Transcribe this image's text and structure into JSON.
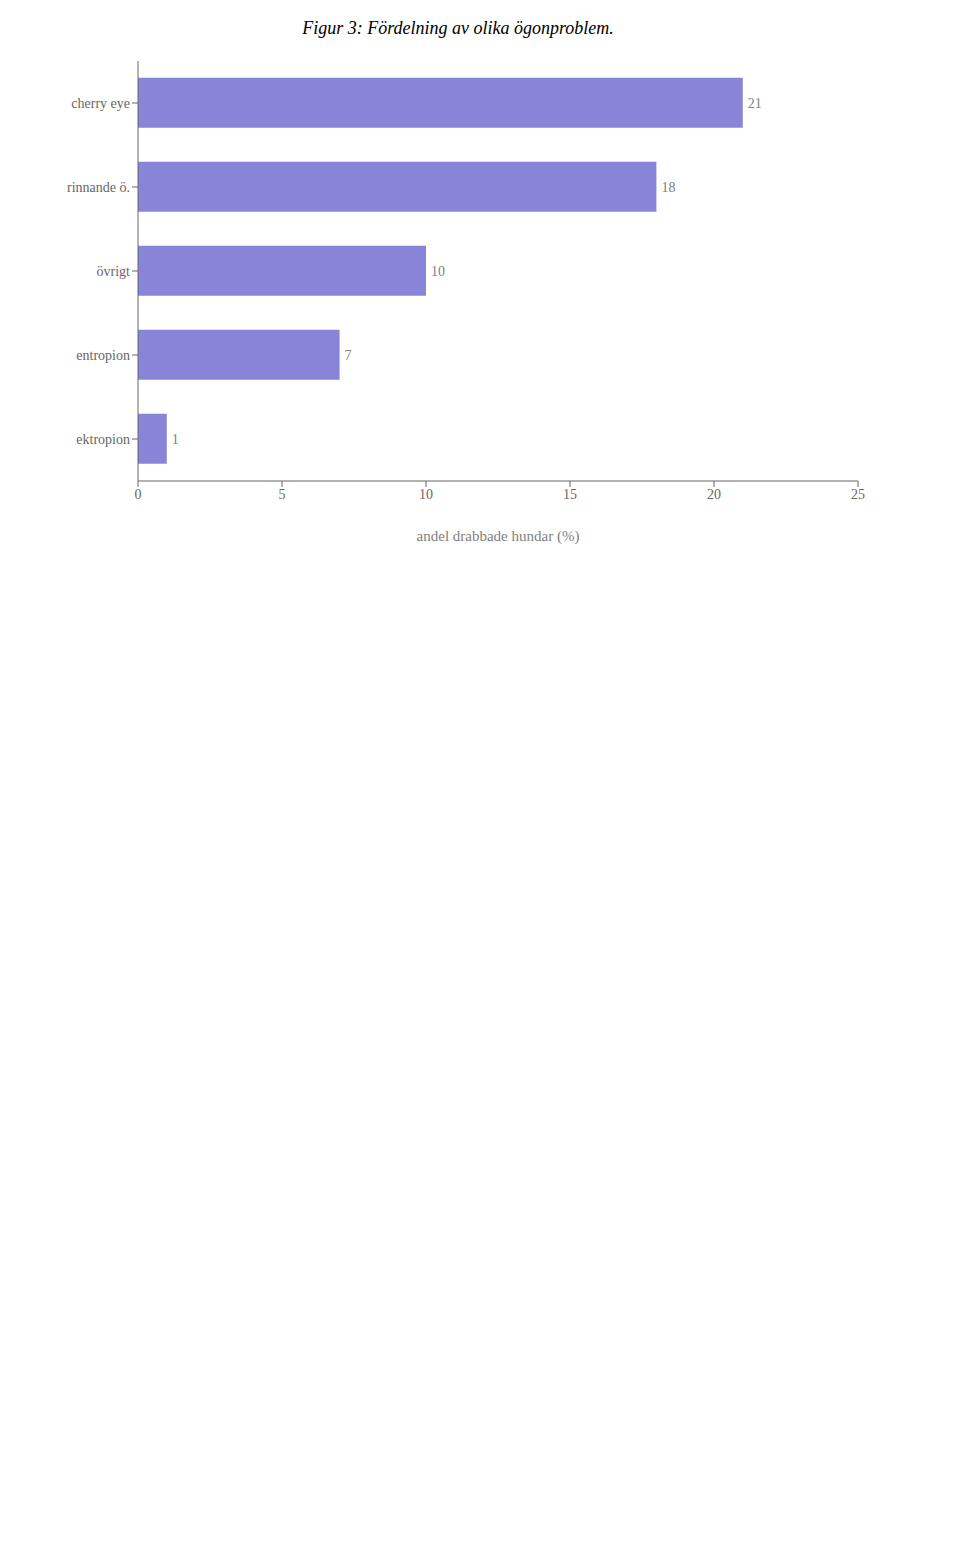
{
  "chart_data": {
    "type": "bar",
    "title": "Figur 3: Fördelning av olika ögonproblem.",
    "orientation": "horizontal",
    "categories": [
      "cherry eye",
      "rinnande ö.",
      "övrigt",
      "entropion",
      "ektropion"
    ],
    "values": [
      21,
      18,
      10,
      7,
      1
    ],
    "xlabel": "andel drabbade hundar (%)",
    "xlim": [
      0,
      25
    ],
    "xticks": [
      0,
      5,
      10,
      15,
      20,
      25
    ],
    "grid": false,
    "data_labels": true
  }
}
